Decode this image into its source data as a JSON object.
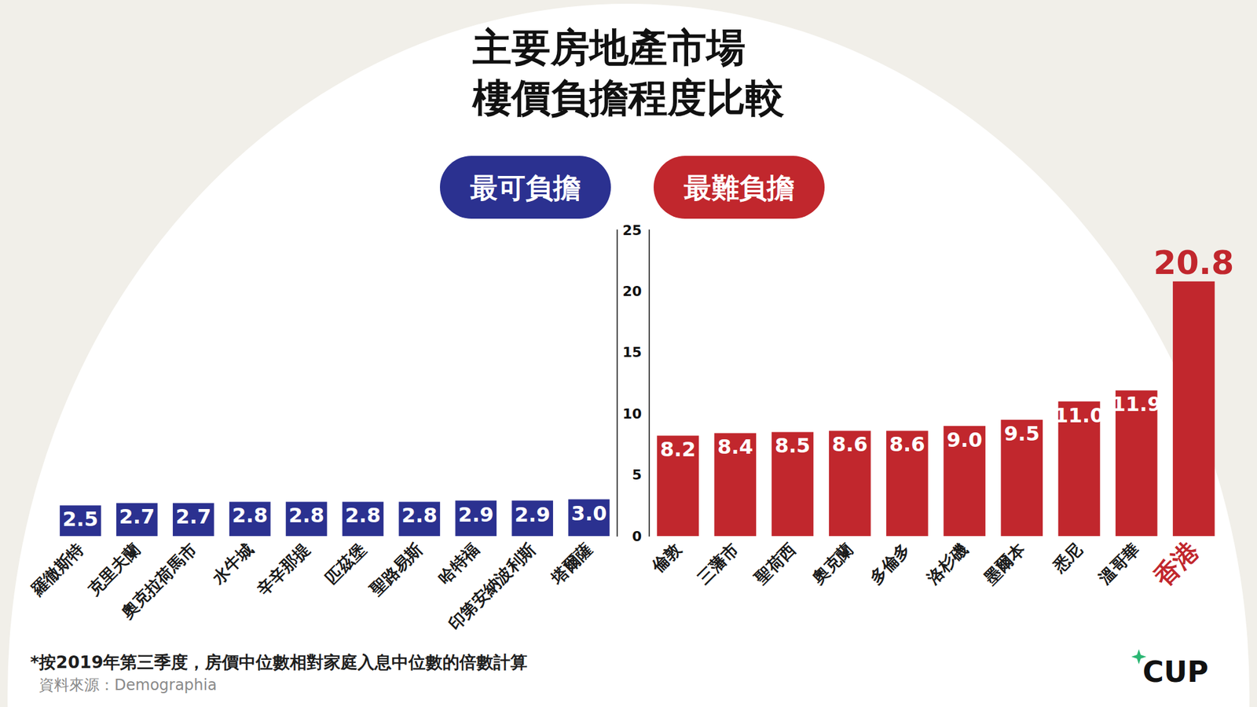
{
  "title": "主要房地產市場\n樓價負擔程度比較",
  "footnote": "*按2019年第三季度，房價中位數相對家庭入息中位數的倍數計算",
  "source": "資料來源：Demographia",
  "brand": "CUP",
  "chart_data": [
    {
      "type": "bar",
      "title": "最可負擔",
      "categories": [
        "羅徹斯特",
        "克里夫蘭",
        "奧克拉荷馬市",
        "水牛城",
        "辛辛那提",
        "匹茲堡",
        "聖路易斯",
        "哈特福",
        "印第安納波利斯",
        "塔爾薩"
      ],
      "values": [
        2.5,
        2.7,
        2.7,
        2.8,
        2.8,
        2.8,
        2.8,
        2.9,
        2.9,
        3.0
      ],
      "value_labels": [
        "2.5",
        "2.7",
        "2.7",
        "2.8",
        "2.8",
        "2.8",
        "2.8",
        "2.9",
        "2.9",
        "3.0"
      ],
      "color": "#2b3190",
      "ylim": [
        0,
        25
      ],
      "yticks": [
        0,
        5,
        10,
        15,
        20,
        25
      ],
      "grid": false,
      "data_labels": true,
      "tick_labels": "x"
    },
    {
      "type": "bar",
      "title": "最難負擔",
      "categories": [
        "倫敦",
        "三藩市",
        "聖荷西",
        "奧克蘭",
        "多倫多",
        "洛杉磯",
        "墨爾本",
        "悉尼",
        "溫哥華",
        "香港"
      ],
      "values": [
        8.2,
        8.4,
        8.5,
        8.6,
        8.6,
        9.0,
        9.5,
        11.0,
        11.9,
        20.8
      ],
      "value_labels": [
        "8.2",
        "8.4",
        "8.5",
        "8.6",
        "8.6",
        "9.0",
        "9.5",
        "11.0",
        "11.9",
        "20.8"
      ],
      "color": "#c1272d",
      "ylim": [
        0,
        25
      ],
      "yticks": [
        0,
        5,
        10,
        15,
        20,
        25
      ],
      "grid": false,
      "data_labels": true
    }
  ]
}
